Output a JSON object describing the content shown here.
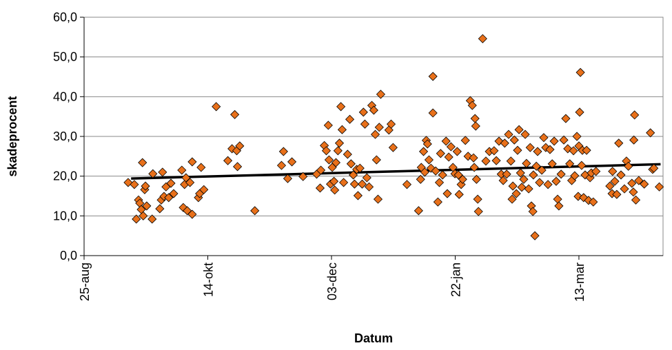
{
  "chart_data": {
    "type": "scatter",
    "x_label": "Datum",
    "y_label": "skadeprocent",
    "xlim": [
      0,
      234
    ],
    "ylim": [
      0,
      60
    ],
    "xticks": [
      {
        "value": 0,
        "label": "25-aug"
      },
      {
        "value": 50,
        "label": "14-okt"
      },
      {
        "value": 100,
        "label": "03-dec"
      },
      {
        "value": 150,
        "label": "22-jan"
      },
      {
        "value": 200,
        "label": "13-mar"
      }
    ],
    "yticks": [
      {
        "value": 0,
        "label": "0,0"
      },
      {
        "value": 10,
        "label": "10,0"
      },
      {
        "value": 20,
        "label": "20,0"
      },
      {
        "value": 30,
        "label": "30,0"
      },
      {
        "value": 40,
        "label": "40,0"
      },
      {
        "value": 50,
        "label": "50,0"
      },
      {
        "value": 60,
        "label": "60,0"
      }
    ],
    "grid": true,
    "marker_color": "#e8701a",
    "x": [
      17.8,
      20.3,
      21.1,
      22,
      22.5,
      23.1,
      23.6,
      23.9,
      24.5,
      24.8,
      25.3,
      27.5,
      27.8,
      30.6,
      31.2,
      31.7,
      32.3,
      33.1,
      34.2,
      35.1,
      36.2,
      39.5,
      40.1,
      40.6,
      41.2,
      41.7,
      42.8,
      43.7,
      43.7,
      46.2,
      46.7,
      47.3,
      48.4,
      53.4,
      58.1,
      59.8,
      60.9,
      61.7,
      62.9,
      62,
      69,
      79.8,
      80.6,
      82.3,
      84,
      88.5,
      94,
      95.4,
      95.7,
      97.1,
      97.9,
      98.7,
      99,
      99.6,
      100.3,
      101,
      101.3,
      101.8,
      102.6,
      103.2,
      103.8,
      104.3,
      104.9,
      106.5,
      107.4,
      107.9,
      108.8,
      109.3,
      110.2,
      110.7,
      111.5,
      112.4,
      112.9,
      113.5,
      114.3,
      115.2,
      116.3,
      117.1,
      117.7,
      118.2,
      118.8,
      119.3,
      119.9,
      123.2,
      124.1,
      124.9,
      130.5,
      135.2,
      136,
      136.3,
      137.2,
      137.7,
      138.3,
      138.8,
      139.4,
      140.2,
      141,
      141,
      142.1,
      143,
      143.6,
      144.1,
      144.9,
      146.3,
      146.8,
      147.4,
      148.3,
      149.1,
      149.9,
      150.8,
      151.3,
      151.6,
      152.4,
      153,
      154.1,
      155.2,
      156.1,
      156.9,
      157.4,
      157.7,
      158,
      158.6,
      158.3,
      159.1,
      159.4,
      161.1,
      162.4,
      163.8,
      165.7,
      166.6,
      167.7,
      168.6,
      169.4,
      170,
      170.8,
      171.6,
      172.5,
      173,
      173.3,
      173.9,
      174.7,
      175.2,
      175.8,
      176.4,
      176.9,
      177.7,
      178.3,
      178.8,
      179.7,
      180.3,
      180.8,
      181.4,
      181.6,
      182.2,
      182.8,
      183.3,
      184.1,
      185,
      185.8,
      186.6,
      187.5,
      188.3,
      189.2,
      190,
      190.8,
      191.4,
      191.9,
      192.8,
      193.9,
      194.7,
      195.5,
      196.3,
      197.1,
      197.8,
      198.3,
      199.2,
      199.7,
      200,
      200.3,
      200.6,
      201.1,
      201.4,
      201.9,
      202.5,
      203.1,
      203.9,
      204.5,
      205,
      205.8,
      206.9,
      212.5,
      213.4,
      213.6,
      214.5,
      215.3,
      216.1,
      217,
      218.4,
      219.2,
      220,
      221.4,
      222,
      222.2,
      222.5,
      223,
      224.2,
      226.4,
      228.9,
      229.8,
      230.3,
      232.5
    ],
    "y": [
      18.4,
      17.9,
      9.2,
      14,
      13.2,
      11.6,
      23.4,
      10,
      16.6,
      17.5,
      12.5,
      9.2,
      20.6,
      11.8,
      14,
      21,
      14.9,
      17.3,
      14.6,
      18.2,
      15.6,
      21.5,
      12.1,
      17.9,
      19.6,
      11.3,
      18.4,
      10.4,
      23.6,
      14.6,
      15.6,
      22.2,
      16.6,
      37.5,
      23.9,
      26.9,
      35.5,
      26.4,
      27.6,
      22.4,
      11.3,
      22.7,
      26.2,
      19.4,
      23.6,
      19.9,
      20.5,
      17,
      21.5,
      27.7,
      26.4,
      32.8,
      24.1,
      18,
      22.2,
      18.7,
      16.5,
      23.4,
      26.4,
      28.3,
      37.5,
      31.7,
      18.4,
      25.5,
      34.3,
      23.1,
      20.3,
      18,
      21.7,
      15.1,
      22,
      18,
      36.1,
      33.1,
      19.6,
      17.3,
      37.8,
      36.6,
      30.5,
      24.1,
      14.2,
      32.3,
      40.6,
      31.6,
      33.1,
      27.2,
      17.9,
      11.3,
      19.2,
      22.2,
      26.2,
      21,
      29,
      28.1,
      24.1,
      22,
      35.9,
      45.1,
      21.3,
      13.5,
      18.4,
      25.7,
      20.3,
      28.8,
      15.6,
      24.8,
      27.4,
      22.2,
      20.6,
      26.2,
      20.3,
      15.4,
      17.9,
      19.2,
      29,
      25,
      39,
      37.8,
      24.6,
      22.2,
      34.5,
      19.2,
      32.6,
      14.2,
      11.1,
      54.6,
      23.8,
      26.2,
      26.4,
      23.9,
      28.8,
      20.5,
      18.9,
      28.3,
      20.5,
      30.5,
      23.8,
      14.2,
      17.5,
      29.1,
      15.6,
      26.5,
      31.7,
      20.8,
      17.2,
      19.2,
      30.5,
      23.2,
      16.8,
      27.2,
      12.5,
      11.1,
      20.3,
      5,
      22.5,
      26.2,
      18.4,
      21.5,
      29.7,
      27.2,
      17.9,
      26.7,
      23.1,
      28.8,
      18.7,
      14.2,
      12.5,
      20.5,
      29.1,
      34.5,
      26.9,
      23.1,
      18.9,
      26.4,
      20.1,
      30,
      14.9,
      27.6,
      36.1,
      46.1,
      22.7,
      26.5,
      14.6,
      20.3,
      26.5,
      13.9,
      19.6,
      20.8,
      13.5,
      21.2,
      17.5,
      15.6,
      21.2,
      18.7,
      15.4,
      28.3,
      20.3,
      16.8,
      23.8,
      22.5,
      18.2,
      16,
      29.1,
      35.4,
      14,
      18.9,
      18,
      30.9,
      21.7,
      22,
      17.3
    ],
    "trendline": {
      "x": [
        19,
        233
      ],
      "y": [
        19.4,
        23.0
      ],
      "color": "#000000"
    }
  }
}
